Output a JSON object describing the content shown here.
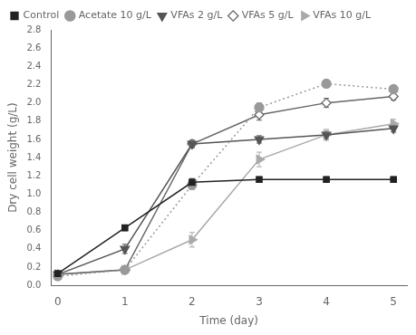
{
  "chart_data": {
    "type": "line",
    "xlabel": "Time (day)",
    "ylabel": "Dry cell weight (g/L)",
    "x": [
      0,
      1,
      2,
      3,
      4,
      5
    ],
    "xlim": [
      -0.1,
      5.2
    ],
    "xticks": [
      0,
      1,
      2,
      3,
      4,
      5
    ],
    "ylim": [
      0.0,
      2.8
    ],
    "yticks": [
      {
        "value": 0.0,
        "label": "0.0"
      },
      0.2,
      0.4,
      0.6,
      0.8,
      {
        "value": 1.0,
        "label": "1.0"
      },
      1.2,
      1.4,
      1.6,
      1.8,
      {
        "value": 2.0,
        "label": "2.0"
      },
      2.2,
      2.4,
      2.6,
      2.8
    ],
    "grid": false,
    "legend": "upper left",
    "series": [
      {
        "name": "Control",
        "color": "#222222",
        "marker": "square",
        "line_style": "solid",
        "values": [
          0.13,
          0.63,
          1.13,
          1.16,
          1.16,
          1.16
        ],
        "errors": [
          0.01,
          0.03,
          0.04,
          0.03,
          0.03,
          0.03
        ]
      },
      {
        "name": "Acetate 10 g/L",
        "color": "#999999",
        "marker": "circle",
        "line_style": "dotted",
        "values": [
          0.1,
          0.17,
          1.1,
          1.95,
          2.21,
          2.15
        ],
        "errors": [
          0.01,
          0.02,
          0.05,
          0.05,
          0.04,
          0.04
        ]
      },
      {
        "name": "VFAs 2 g/L",
        "color": "#555555",
        "marker": "triangle_down",
        "line_style": "solid",
        "values": [
          0.12,
          0.4,
          1.55,
          1.6,
          1.65,
          1.72
        ],
        "errors": [
          0.01,
          0.05,
          0.04,
          0.04,
          0.04,
          0.04
        ]
      },
      {
        "name": "VFAs 5 g/L",
        "color": "#666666",
        "marker": "diamond_open",
        "line_style": "solid",
        "values": [
          0.12,
          0.17,
          1.55,
          1.87,
          2.0,
          2.07
        ],
        "errors": [
          0.01,
          0.02,
          0.04,
          0.06,
          0.05,
          0.04
        ]
      },
      {
        "name": "VFAs 10 g/L",
        "color": "#aaaaaa",
        "marker": "triangle_right",
        "line_style": "solid",
        "values": [
          0.12,
          0.17,
          0.5,
          1.38,
          1.65,
          1.77
        ],
        "errors": [
          0.01,
          0.02,
          0.08,
          0.08,
          0.06,
          0.05
        ]
      }
    ]
  }
}
